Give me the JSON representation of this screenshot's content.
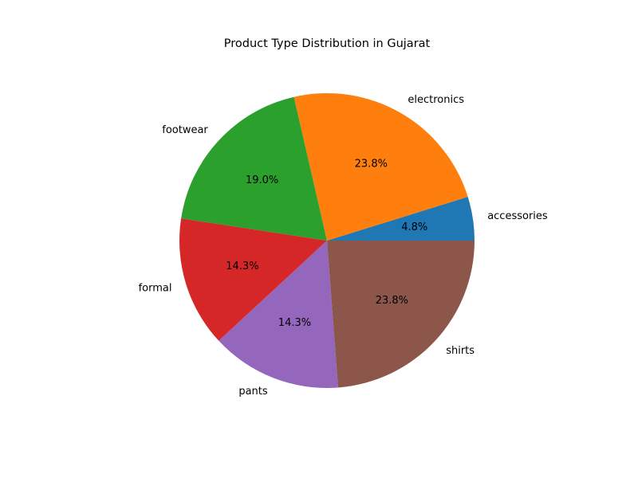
{
  "chart_data": {
    "type": "pie",
    "title": "Product Type Distribution in Gujarat",
    "categories": [
      "accessories",
      "electronics",
      "footwear",
      "formal",
      "pants",
      "shirts"
    ],
    "values": [
      4.8,
      23.8,
      19.0,
      14.3,
      14.3,
      23.8
    ],
    "percent_labels": [
      "4.8%",
      "23.8%",
      "19.0%",
      "14.3%",
      "14.3%",
      "23.8%"
    ],
    "colors": [
      "#1f77b4",
      "#ff7f0e",
      "#2ca02c",
      "#d62728",
      "#9467bd",
      "#8c564b"
    ],
    "start_angle_deg": 0,
    "direction": "counterclockwise"
  }
}
